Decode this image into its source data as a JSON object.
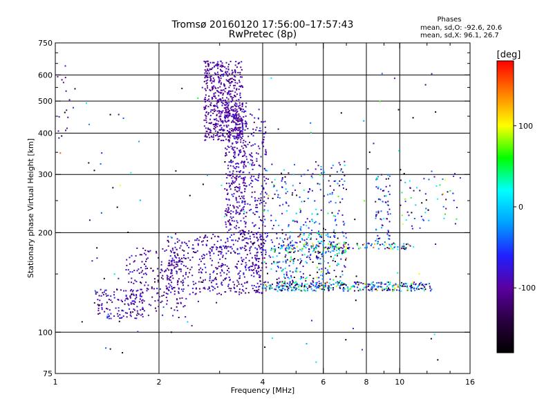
{
  "chart_data": {
    "type": "scatter",
    "title": "Tromsø 20160120 17:56:00–17:57:43",
    "subtitle": "RwPretec (8p)",
    "xlabel": "Frequency [MHz]",
    "ylabel": "Stationary phase Virtual Height [km]",
    "x_scale": "log",
    "y_scale": "log",
    "xlim": [
      1,
      16
    ],
    "ylim": [
      75,
      750
    ],
    "x_ticks": [
      1,
      2,
      4,
      6,
      8,
      10,
      16
    ],
    "x_tick_labels": [
      "1",
      "2",
      "4",
      "6",
      "8",
      "10",
      "16"
    ],
    "x_minor_ticks": [
      3,
      5,
      7,
      9,
      12,
      14
    ],
    "y_ticks": [
      75,
      100,
      200,
      300,
      400,
      500,
      600,
      750
    ],
    "y_tick_labels": [
      "75",
      "100",
      "200",
      "300",
      "400",
      "500",
      "600",
      "750"
    ],
    "grid_x": [
      2,
      4,
      6,
      8,
      10
    ],
    "grid_y": [
      100,
      200,
      300,
      400,
      500,
      600
    ],
    "stats": {
      "title": "Phases",
      "line1": "mean, sd,O: -92.6, 20.6",
      "line2": "mean, sd,X:  96.1, 26.7"
    },
    "colorbar": {
      "label": "[deg]",
      "range": [
        -180,
        180
      ],
      "tick_values": [
        100,
        0,
        -100
      ],
      "tick_labels": [
        "100",
        "0",
        "-100"
      ],
      "colormap": [
        "#000000",
        "#2a0040",
        "#5a00a0",
        "#2020ff",
        "#00a0ff",
        "#00ffff",
        "#00ff00",
        "#ffff00",
        "#ff8000",
        "#ff0000"
      ]
    },
    "clusters": [
      {
        "f": [
          2.7,
          3.5
        ],
        "h": [
          380,
          660
        ],
        "n": 550,
        "ph": [
          -100,
          12
        ]
      },
      {
        "f": [
          3.1,
          3.6
        ],
        "h": [
          200,
          500
        ],
        "n": 350,
        "ph": [
          -95,
          15
        ]
      },
      {
        "f": [
          3.5,
          4.1
        ],
        "h": [
          150,
          480
        ],
        "n": 220,
        "ph": [
          -90,
          20
        ]
      },
      {
        "f": [
          2.1,
          4.0
        ],
        "h": [
          130,
          200
        ],
        "n": 450,
        "ph": [
          -95,
          20
        ]
      },
      {
        "f": [
          1.6,
          2.4
        ],
        "h": [
          110,
          180
        ],
        "n": 220,
        "ph": [
          -100,
          20
        ]
      },
      {
        "f": [
          1.3,
          1.8
        ],
        "h": [
          110,
          135
        ],
        "n": 110,
        "ph": [
          -95,
          25
        ]
      },
      {
        "f": [
          4.0,
          7.0
        ],
        "h": [
          160,
          330
        ],
        "n": 260,
        "ph": [
          -60,
          60
        ]
      },
      {
        "f": [
          4.2,
          7.0
        ],
        "h": [
          140,
          200
        ],
        "n": 260,
        "ph": [
          -50,
          80
        ]
      },
      {
        "f": [
          4.0,
          12.5
        ],
        "h": [
          133,
          142
        ],
        "n": 360,
        "ph": [
          -40,
          90
        ]
      },
      {
        "f": [
          4.5,
          11.0
        ],
        "h": [
          178,
          186
        ],
        "n": 120,
        "ph": [
          -20,
          90
        ]
      },
      {
        "f": [
          8.5,
          9.4
        ],
        "h": [
          180,
          300
        ],
        "n": 70,
        "ph": [
          -60,
          50
        ]
      },
      {
        "f": [
          10.0,
          15.0
        ],
        "h": [
          205,
          310
        ],
        "n": 60,
        "ph": [
          -30,
          80
        ]
      },
      {
        "f": [
          1.0,
          1.1
        ],
        "h": [
          380,
          640
        ],
        "n": 14,
        "ph": [
          -100,
          10
        ]
      },
      {
        "f": [
          1.0,
          13.0
        ],
        "h": [
          80,
          620
        ],
        "n": 120,
        "ph": [
          -100,
          120
        ]
      }
    ]
  }
}
